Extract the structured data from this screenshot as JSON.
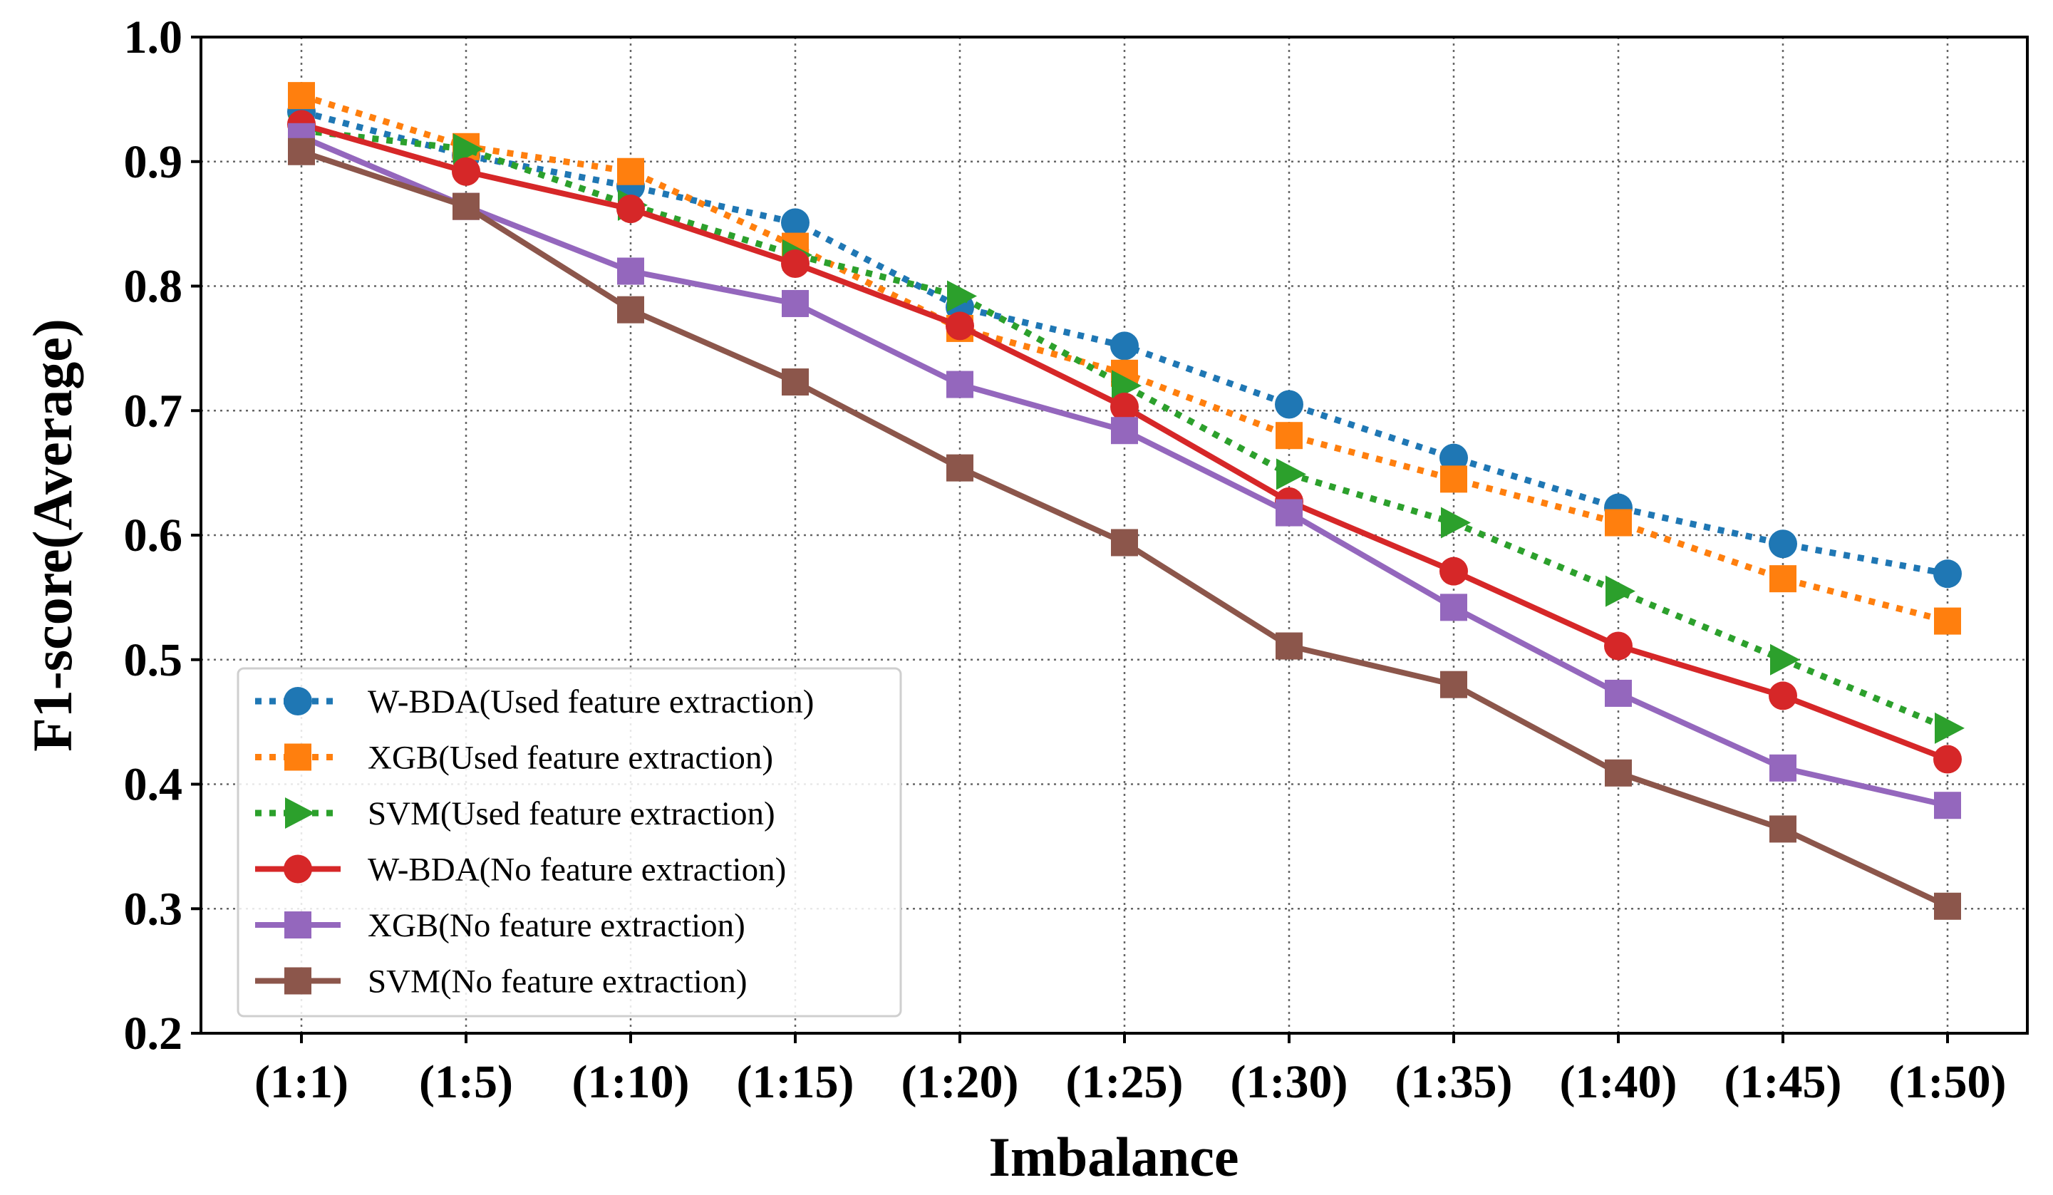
{
  "chart_data": {
    "type": "line",
    "title": "",
    "xlabel": "Imbalance",
    "ylabel": "F1-score(Average)",
    "ylim": [
      0.2,
      1.0
    ],
    "yticks": [
      "0.2",
      "0.3",
      "0.4",
      "0.5",
      "0.6",
      "0.7",
      "0.8",
      "0.9",
      "1.0"
    ],
    "categories": [
      "(1:1)",
      "(1:5)",
      "(1:10)",
      "(1:15)",
      "(1:20)",
      "(1:25)",
      "(1:30)",
      "(1:35)",
      "(1:40)",
      "(1:45)",
      "(1:50)"
    ],
    "grid": true,
    "legend_position": "lower-left",
    "series": [
      {
        "name": "W-BDA(Used feature extraction)",
        "color": "#1f77b4",
        "linestyle": "dotted",
        "marker": "circle",
        "values": [
          0.94,
          0.905,
          0.88,
          0.851,
          0.783,
          0.752,
          0.705,
          0.662,
          0.622,
          0.593,
          0.569
        ]
      },
      {
        "name": "XGB(Used feature extraction)",
        "color": "#ff7f0e",
        "linestyle": "dotted",
        "marker": "square",
        "values": [
          0.953,
          0.912,
          0.892,
          0.832,
          0.766,
          0.73,
          0.68,
          0.645,
          0.61,
          0.565,
          0.531
        ]
      },
      {
        "name": "SVM(Used feature extraction)",
        "color": "#2ca02c",
        "linestyle": "dotted",
        "marker": "triangle-right",
        "values": [
          0.925,
          0.91,
          0.865,
          0.825,
          0.792,
          0.72,
          0.649,
          0.61,
          0.555,
          0.5,
          0.445
        ]
      },
      {
        "name": "W-BDA(No feature extraction)",
        "color": "#d62728",
        "linestyle": "solid",
        "marker": "circle",
        "values": [
          0.93,
          0.892,
          0.862,
          0.818,
          0.768,
          0.703,
          0.627,
          0.571,
          0.511,
          0.471,
          0.42
        ]
      },
      {
        "name": "XGB(No feature extraction)",
        "color": "#9467bd",
        "linestyle": "solid",
        "marker": "square",
        "values": [
          0.92,
          0.864,
          0.812,
          0.786,
          0.721,
          0.684,
          0.618,
          0.542,
          0.473,
          0.413,
          0.383
        ]
      },
      {
        "name": "SVM(No feature extraction)",
        "color": "#8c564b",
        "linestyle": "solid",
        "marker": "square",
        "values": [
          0.908,
          0.864,
          0.781,
          0.723,
          0.654,
          0.594,
          0.511,
          0.48,
          0.409,
          0.364,
          0.302
        ]
      }
    ]
  }
}
